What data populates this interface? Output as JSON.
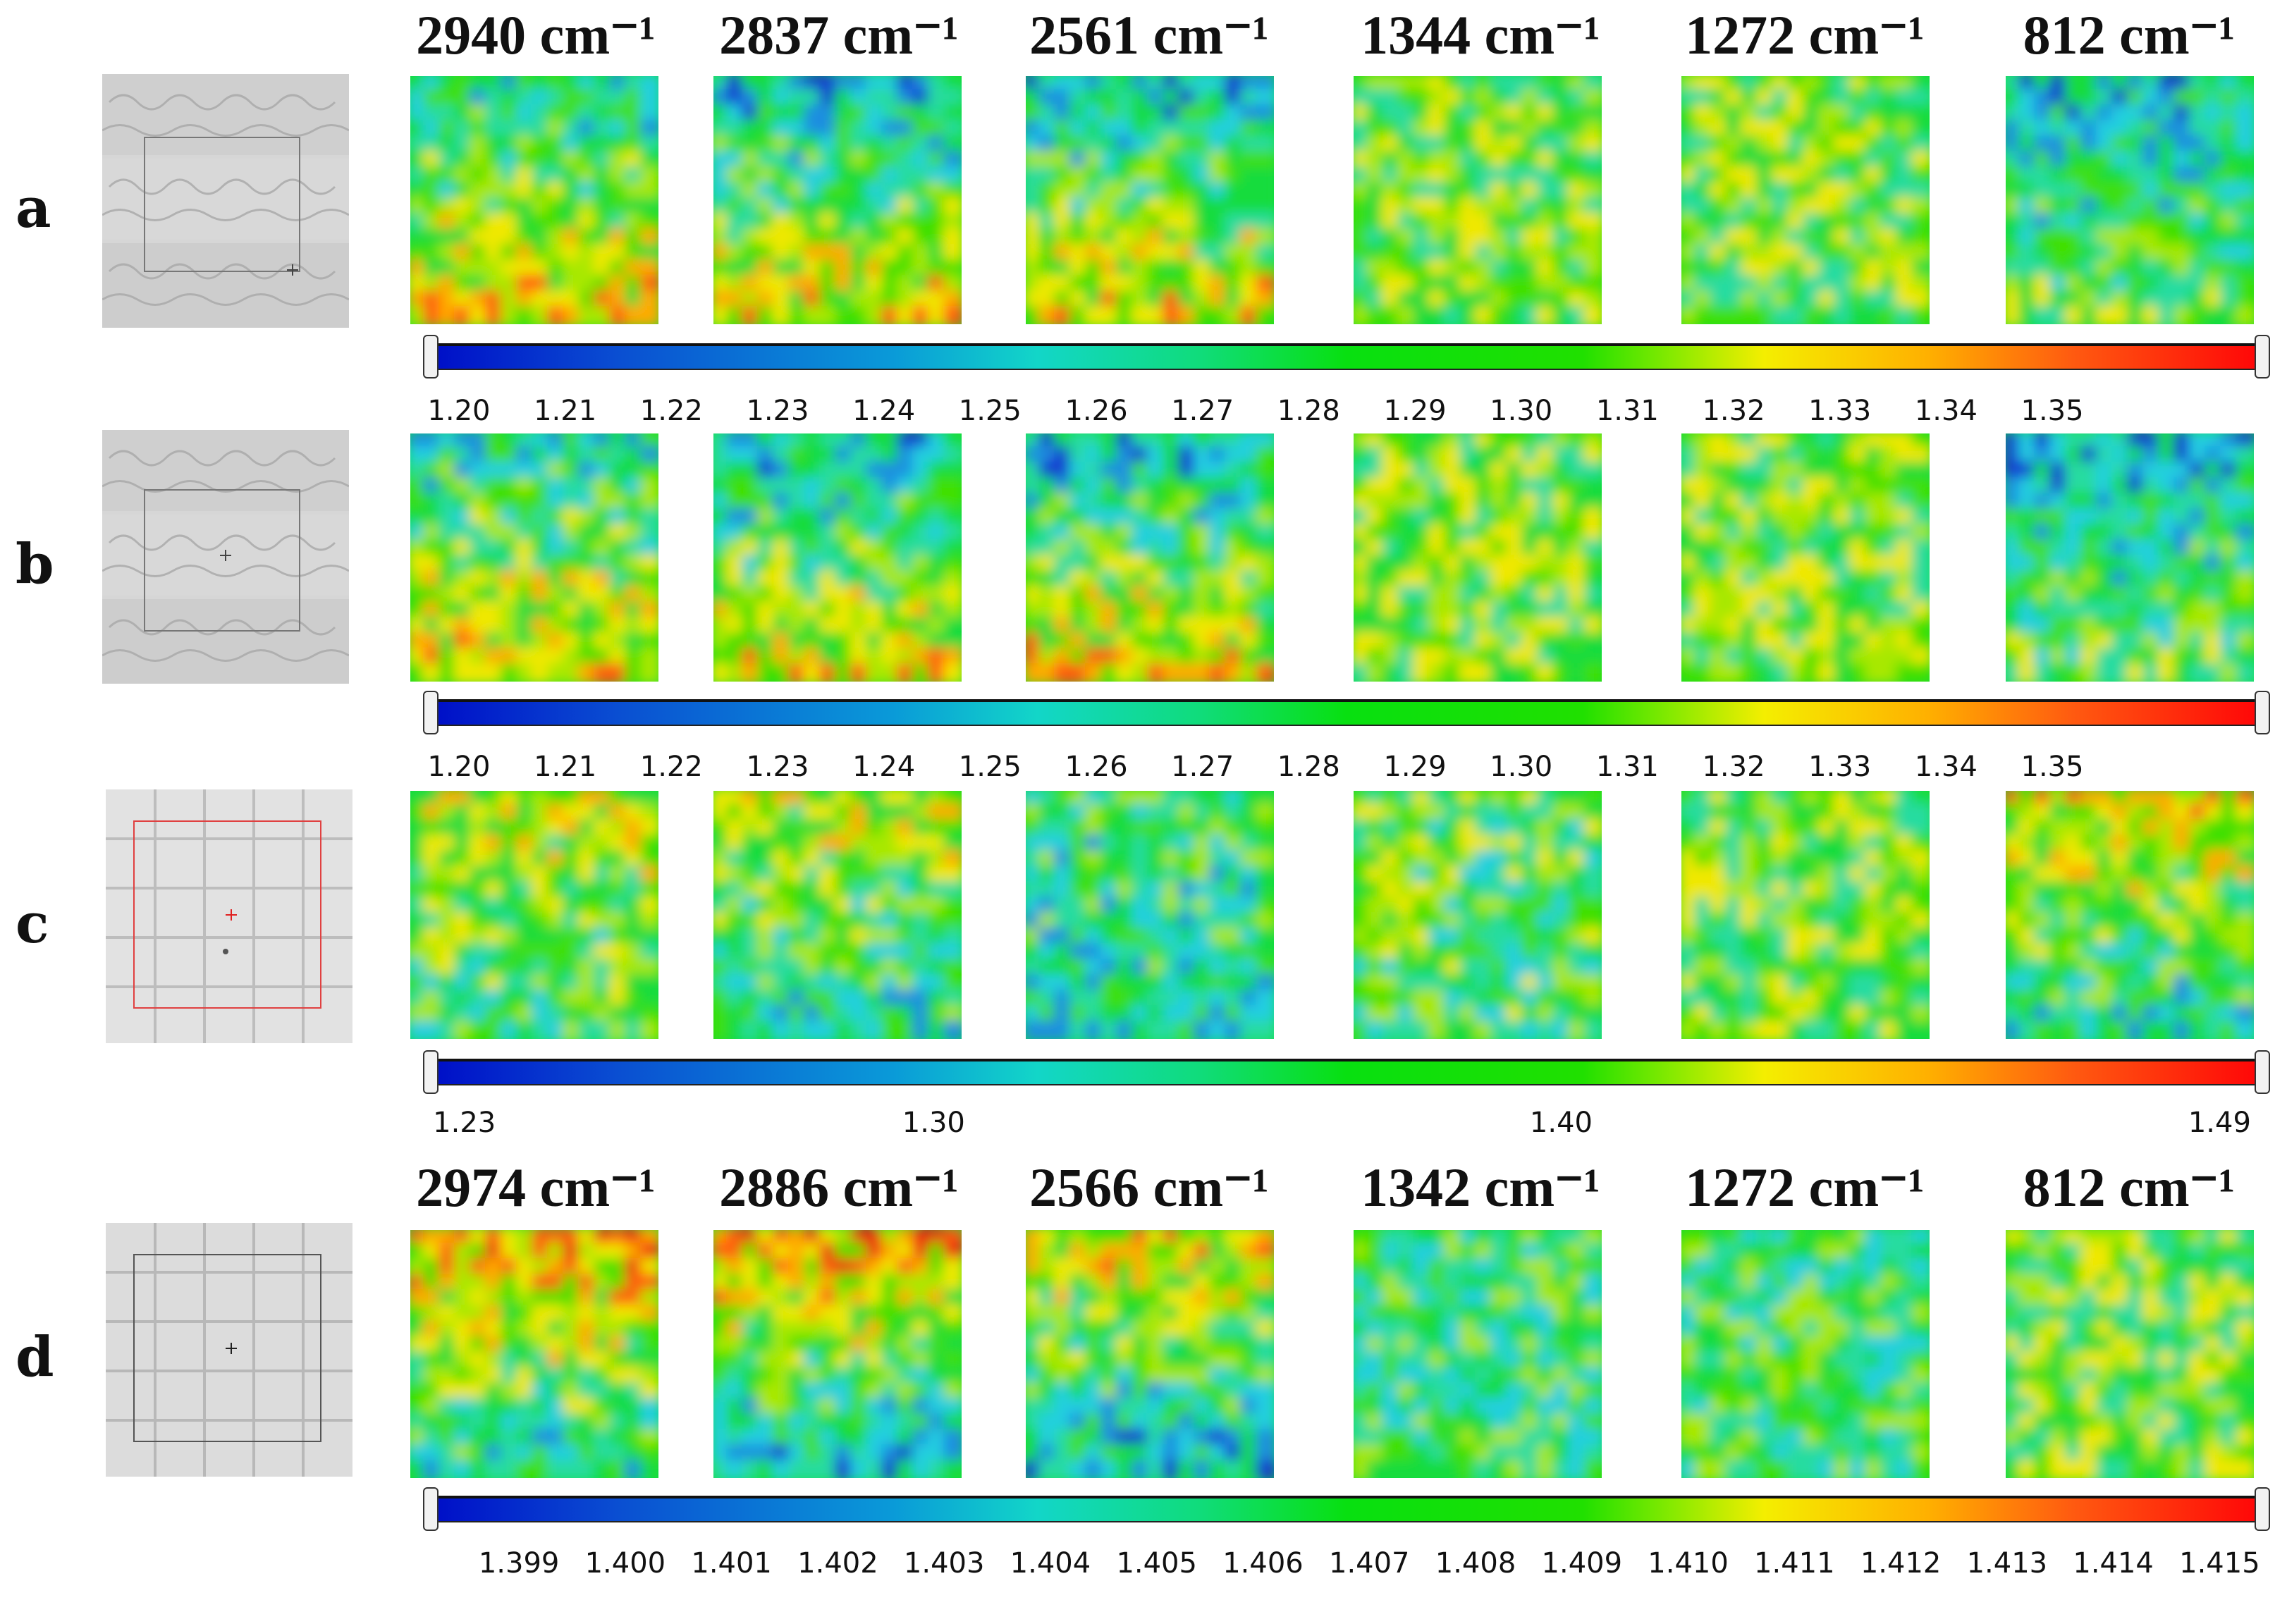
{
  "rows": [
    {
      "label": "a"
    },
    {
      "label": "b"
    },
    {
      "label": "c"
    },
    {
      "label": "d"
    }
  ],
  "headers_top": [
    "2940 cm⁻¹",
    "2837 cm⁻¹",
    "2561 cm⁻¹",
    "1344 cm⁻¹",
    "1272 cm⁻¹",
    "812 cm⁻¹"
  ],
  "headers_bottom": [
    "2974 cm⁻¹",
    "2886 cm⁻¹",
    "2566 cm⁻¹",
    "1342 cm⁻¹",
    "1272 cm⁻¹",
    "812 cm⁻¹"
  ],
  "colorbars": [
    {
      "ticks": [
        "1.20",
        "1.21",
        "1.22",
        "1.23",
        "1.24",
        "1.25",
        "1.26",
        "1.27",
        "1.28",
        "1.29",
        "1.30",
        "1.31",
        "1.32",
        "1.33",
        "1.34",
        "1.35"
      ]
    },
    {
      "ticks": [
        "1.20",
        "1.21",
        "1.22",
        "1.23",
        "1.24",
        "1.25",
        "1.26",
        "1.27",
        "1.28",
        "1.29",
        "1.30",
        "1.31",
        "1.32",
        "1.33",
        "1.34",
        "1.35"
      ]
    },
    {
      "ticks": [
        "1.23",
        "1.30",
        "1.40",
        "1.49"
      ]
    },
    {
      "ticks": [
        "1.399",
        "1.400",
        "1.401",
        "1.402",
        "1.403",
        "1.404",
        "1.405",
        "1.406",
        "1.407",
        "1.408",
        "1.409",
        "1.410",
        "1.411",
        "1.412",
        "1.413",
        "1.414",
        "1.415"
      ]
    }
  ],
  "colors": {
    "low": "#0010c8",
    "mid": "#08e010",
    "high": "#ff0808"
  }
}
